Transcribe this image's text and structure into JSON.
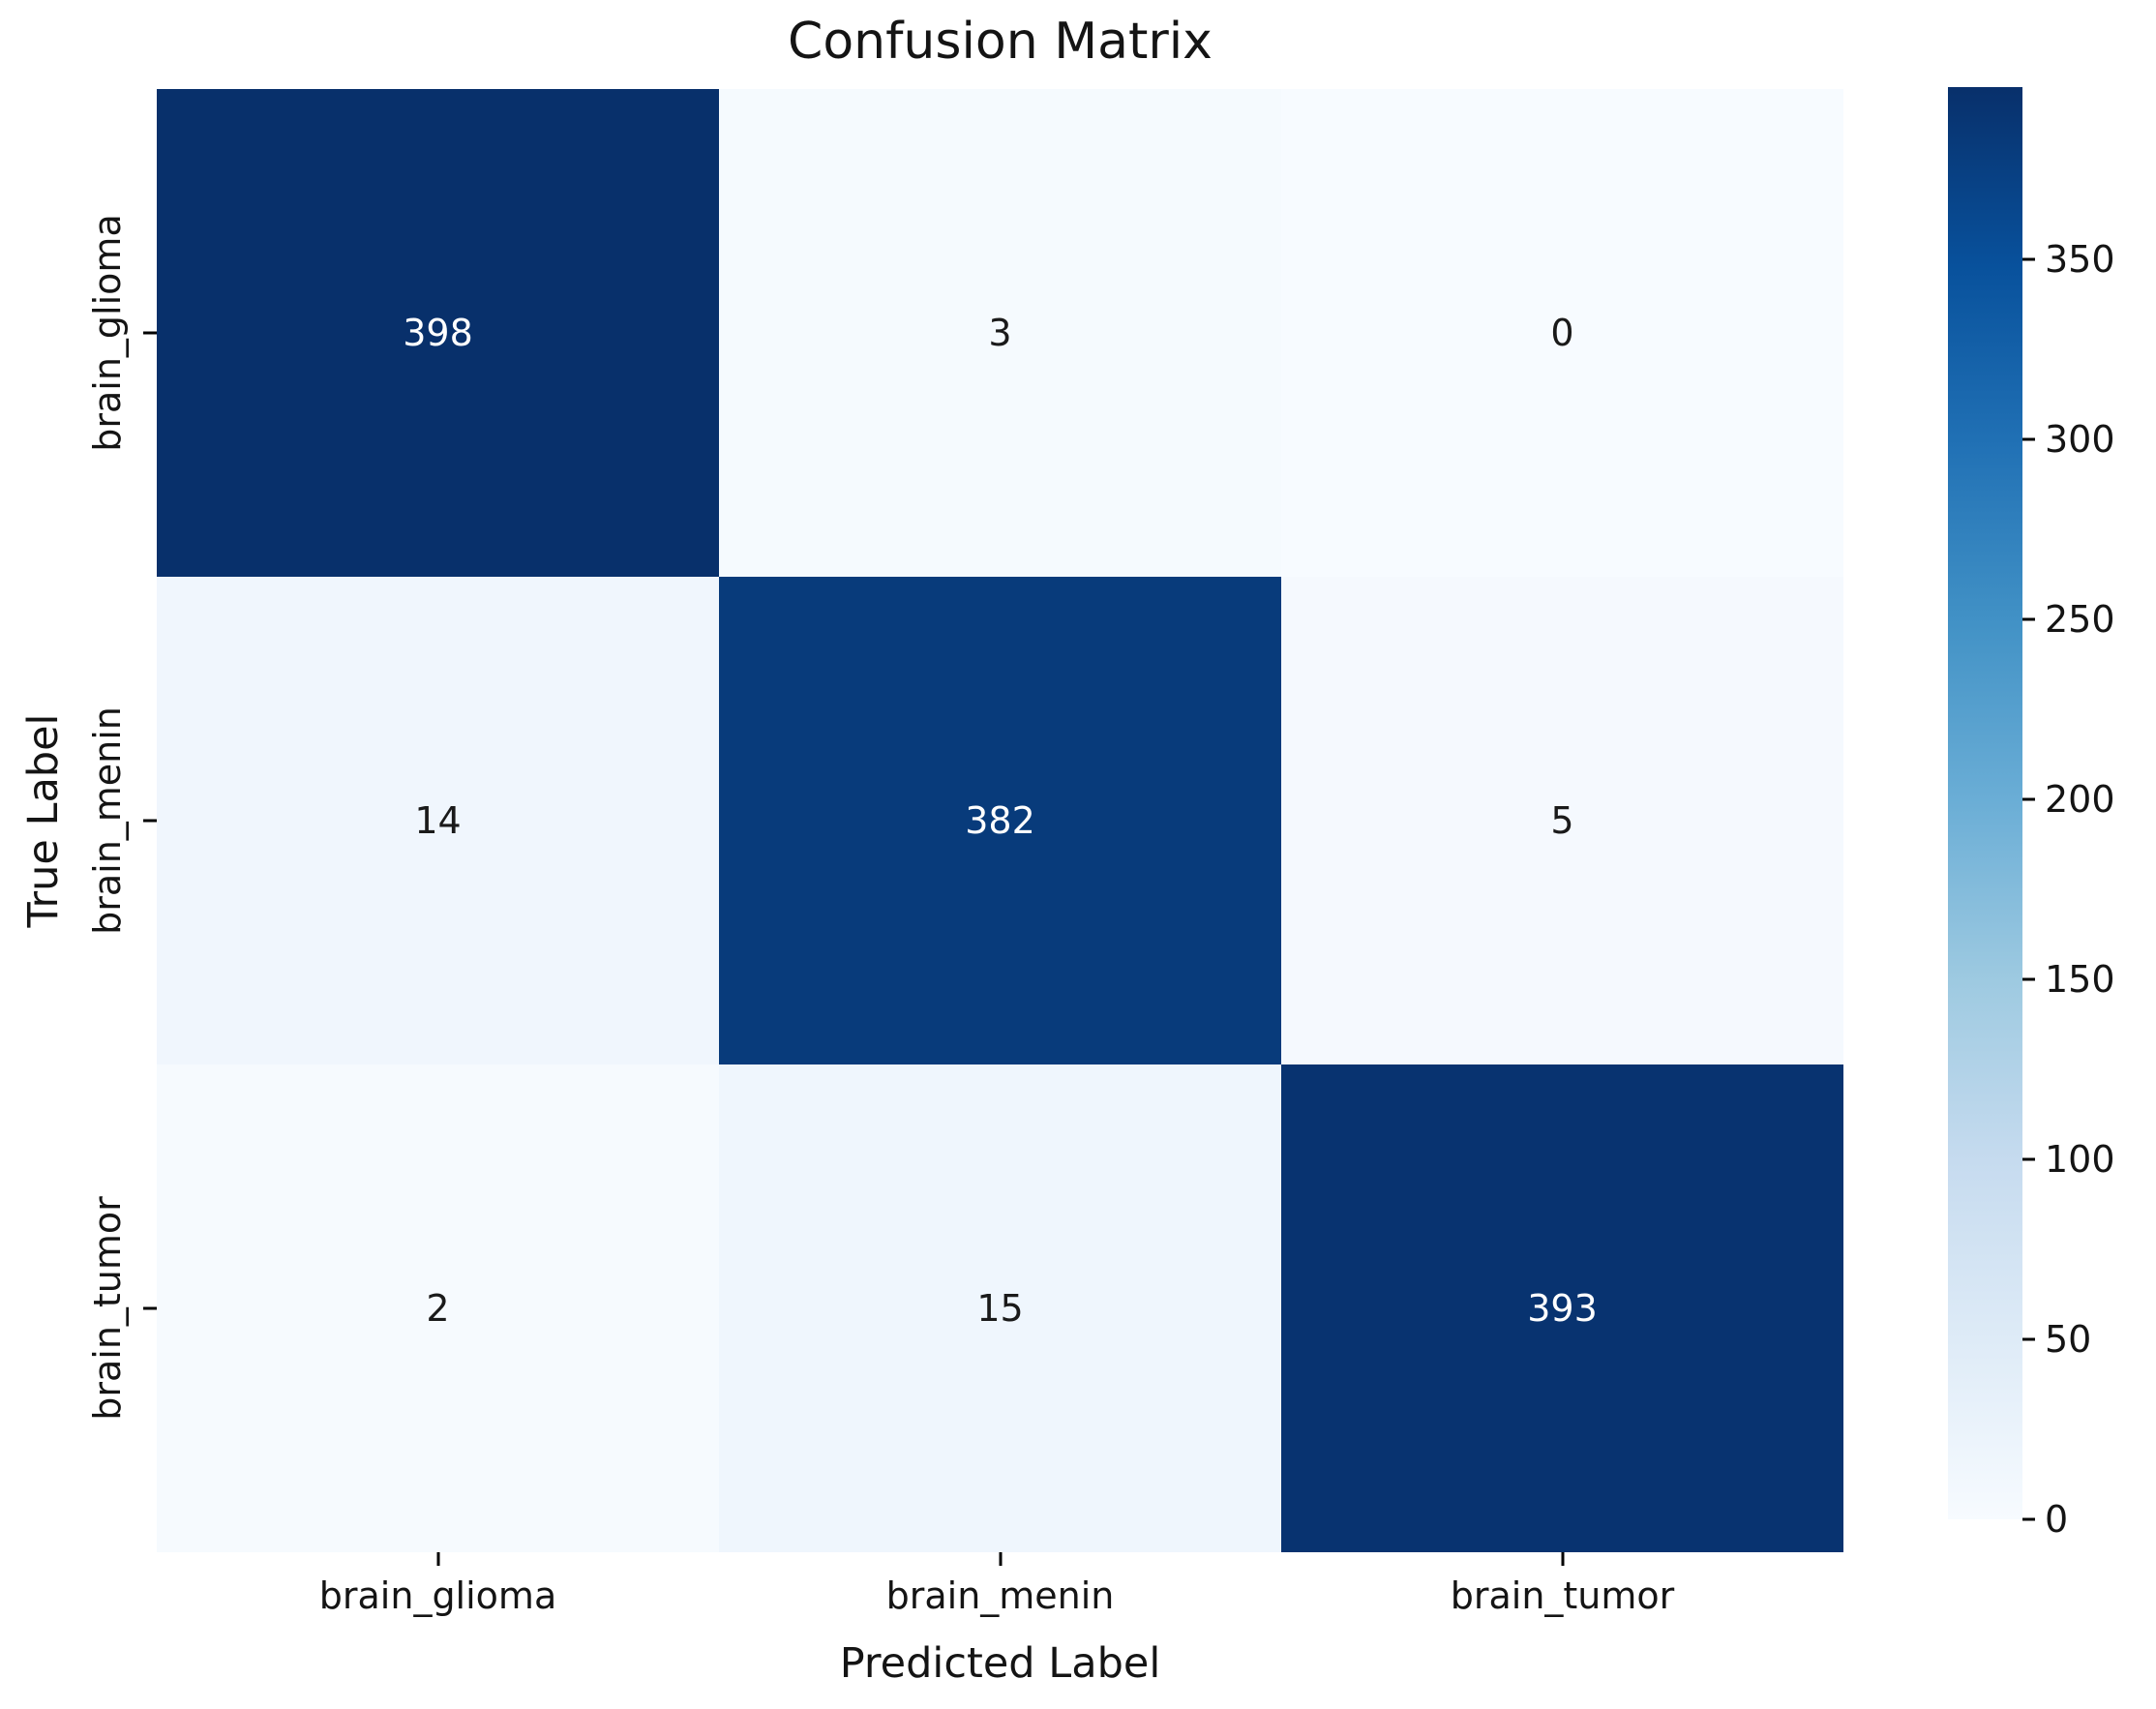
{
  "title": "Confusion Matrix",
  "chart_data": {
    "type": "heatmap",
    "title": "Confusion Matrix",
    "xlabel": "Predicted Label",
    "ylabel": "True Label",
    "x_categories": [
      "brain_glioma",
      "brain_menin",
      "brain_tumor"
    ],
    "y_categories": [
      "brain_glioma",
      "brain_menin",
      "brain_tumor"
    ],
    "matrix": [
      [
        398,
        3,
        0
      ],
      [
        14,
        382,
        5
      ],
      [
        2,
        15,
        393
      ]
    ],
    "vmin": 0,
    "vmax": 398,
    "colormap": "Blues",
    "grid": false,
    "legend_position": "right-colorbar",
    "colorbar_ticks": [
      0,
      50,
      100,
      150,
      200,
      250,
      300,
      350
    ],
    "cell_colors": [
      [
        "#08306b",
        "#f5fafe",
        "#f7fbff"
      ],
      [
        "#f0f6fd",
        "#083b7b",
        "#f5f9fe"
      ],
      [
        "#f6fafe",
        "#eff6fd",
        "#083370"
      ]
    ],
    "annot_colors": [
      [
        "#ffffff",
        "#1a1a1a",
        "#1a1a1a"
      ],
      [
        "#1a1a1a",
        "#ffffff",
        "#1a1a1a"
      ],
      [
        "#1a1a1a",
        "#1a1a1a",
        "#ffffff"
      ]
    ],
    "colormap_stops": [
      "#f7fbff",
      "#deebf7",
      "#c6dbef",
      "#9ecae1",
      "#6baed6",
      "#4292c6",
      "#2171b5",
      "#08519c",
      "#08306b"
    ]
  },
  "colors": {
    "background": "#ffffff",
    "tick": "#000000",
    "text": "#141414",
    "annot_light": "#ffffff",
    "annot_dark": "#1a1a1a"
  }
}
